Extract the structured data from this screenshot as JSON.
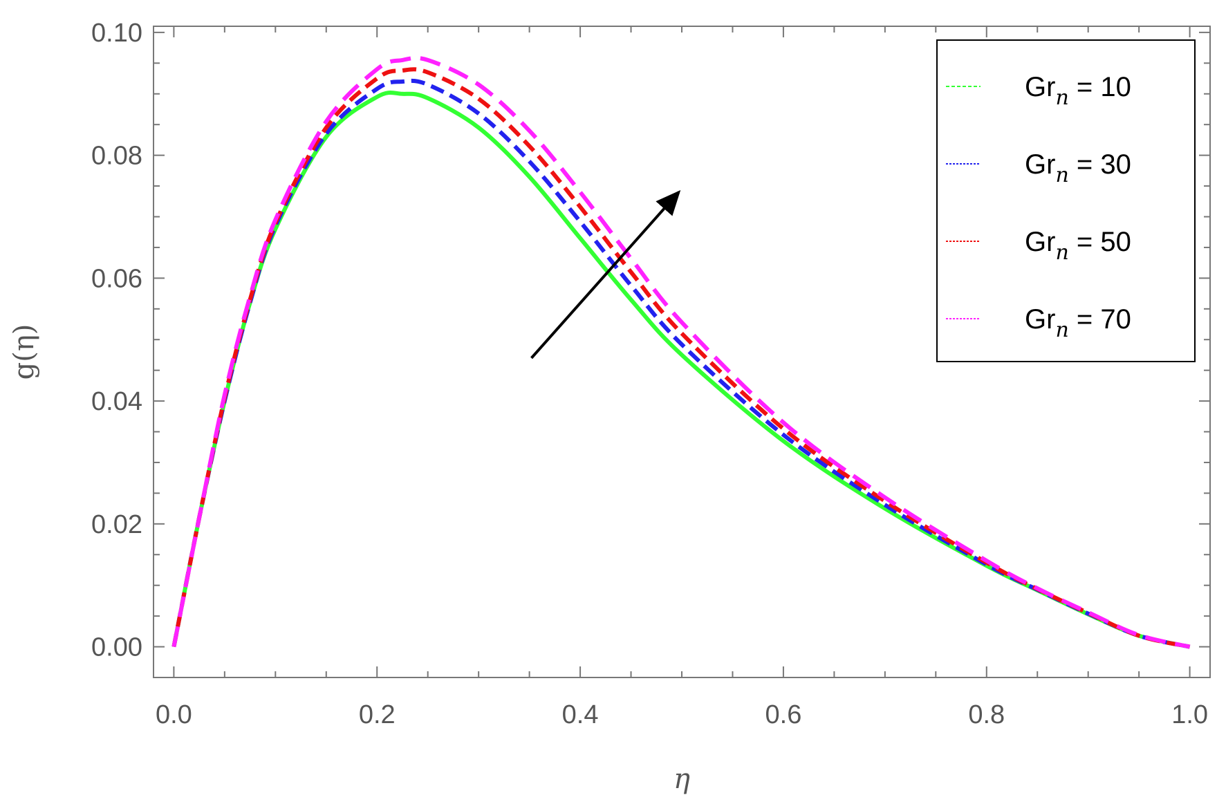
{
  "chart_data": {
    "type": "line",
    "xlabel": "η",
    "ylabel": "g(η)",
    "xlim": [
      -0.02,
      1.02
    ],
    "ylim": [
      -0.005,
      0.101
    ],
    "x_ticks": [
      "0.0",
      "0.2",
      "0.4",
      "0.6",
      "0.8",
      "1.0"
    ],
    "y_ticks": [
      "0.00",
      "0.02",
      "0.04",
      "0.06",
      "0.08",
      "0.10"
    ],
    "x_tick_values": [
      0.0,
      0.2,
      0.4,
      0.6,
      0.8,
      1.0
    ],
    "y_tick_values": [
      0.0,
      0.02,
      0.04,
      0.06,
      0.08,
      0.1
    ],
    "grid": false,
    "legend_position": "top-right",
    "x": [
      0.0,
      0.025,
      0.05,
      0.075,
      0.1,
      0.15,
      0.2,
      0.225,
      0.25,
      0.3,
      0.35,
      0.4,
      0.45,
      0.5,
      0.6,
      0.7,
      0.8,
      0.85,
      0.9,
      0.95,
      1.0
    ],
    "series": [
      {
        "name": "Gr",
        "sub": "n",
        "value_text": " = 10",
        "color": "#33ff33",
        "style": "solid",
        "values": [
          0.0,
          0.021,
          0.04,
          0.056,
          0.068,
          0.083,
          0.0895,
          0.09,
          0.0893,
          0.0845,
          0.0765,
          0.0665,
          0.0565,
          0.0475,
          0.0335,
          0.0225,
          0.0132,
          0.0092,
          0.0053,
          0.0018,
          0.0
        ]
      },
      {
        "name": "Gr",
        "sub": "n",
        "value_text": " = 30",
        "color": "#2222ee",
        "style": "dashed",
        "values": [
          0.0,
          0.021,
          0.04,
          0.056,
          0.0685,
          0.0835,
          0.0908,
          0.092,
          0.0915,
          0.0868,
          0.079,
          0.0692,
          0.0588,
          0.0492,
          0.0345,
          0.0231,
          0.0134,
          0.0093,
          0.0054,
          0.0018,
          0.0
        ]
      },
      {
        "name": "Gr",
        "sub": "n",
        "value_text": " = 50",
        "color": "#ee1111",
        "style": "dashed",
        "values": [
          0.0,
          0.021,
          0.0405,
          0.0565,
          0.069,
          0.0845,
          0.0925,
          0.0938,
          0.0935,
          0.0892,
          0.0815,
          0.0716,
          0.061,
          0.051,
          0.0355,
          0.0237,
          0.0137,
          0.0094,
          0.0055,
          0.0018,
          0.0
        ]
      },
      {
        "name": "Gr",
        "sub": "n",
        "value_text": " = 70",
        "color": "#ff22ff",
        "style": "longdash",
        "values": [
          0.0,
          0.021,
          0.041,
          0.057,
          0.0695,
          0.0855,
          0.094,
          0.0955,
          0.0955,
          0.0915,
          0.084,
          0.074,
          0.0632,
          0.0528,
          0.0365,
          0.0243,
          0.014,
          0.0095,
          0.0056,
          0.0019,
          0.0
        ]
      }
    ],
    "annotation": {
      "type": "arrow",
      "from": [
        0.352,
        0.047
      ],
      "to": [
        0.497,
        0.074
      ],
      "color": "#000000"
    }
  }
}
